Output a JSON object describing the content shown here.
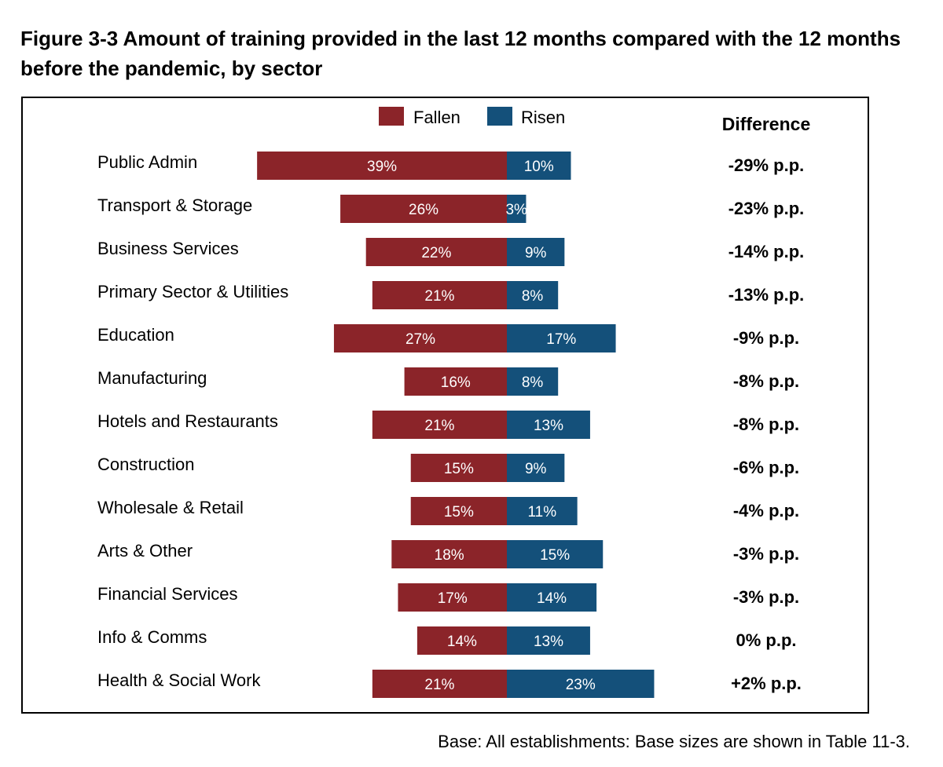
{
  "title": "Figure 3-3 Amount of training provided in the last 12 months compared with the 12 months before the pandemic, by sector",
  "footnote": "Base: All establishments: Base sizes are shown in Table 11-3.",
  "legend_position": "top-center",
  "colors": {
    "fallen": "#8B2429",
    "risen": "#14507A"
  },
  "chart_data": {
    "type": "bar",
    "orientation": "horizontal-diverging",
    "categories": [
      "Public Admin",
      "Transport & Storage",
      "Business Services",
      "Primary Sector & Utilities",
      "Education",
      "Manufacturing",
      "Hotels and Restaurants",
      "Construction",
      "Wholesale & Retail",
      "Arts & Other",
      "Financial Services",
      "Info & Comms",
      "Health & Social Work"
    ],
    "series": [
      {
        "name": "Fallen",
        "values": [
          39,
          26,
          22,
          21,
          27,
          16,
          21,
          15,
          15,
          18,
          17,
          14,
          21
        ],
        "labels": [
          "39%",
          "26%",
          "22%",
          "21%",
          "27%",
          "16%",
          "21%",
          "15%",
          "15%",
          "18%",
          "17%",
          "14%",
          "21%"
        ]
      },
      {
        "name": "Risen",
        "values": [
          10,
          3,
          9,
          8,
          17,
          8,
          13,
          9,
          11,
          15,
          14,
          13,
          23
        ],
        "labels": [
          "10%",
          "3%",
          "9%",
          "8%",
          "17%",
          "8%",
          "13%",
          "9%",
          "11%",
          "15%",
          "14%",
          "13%",
          "23%"
        ]
      }
    ],
    "difference_header": "Difference",
    "difference": [
      "-29% p.p.",
      "-23% p.p.",
      "-14% p.p.",
      "-13% p.p.",
      "-9% p.p.",
      "-8% p.p.",
      "-8% p.p.",
      "-6% p.p.",
      "-4% p.p.",
      "-3% p.p.",
      "-3% p.p.",
      "0% p.p.",
      "+2% p.p."
    ],
    "grid": false
  }
}
